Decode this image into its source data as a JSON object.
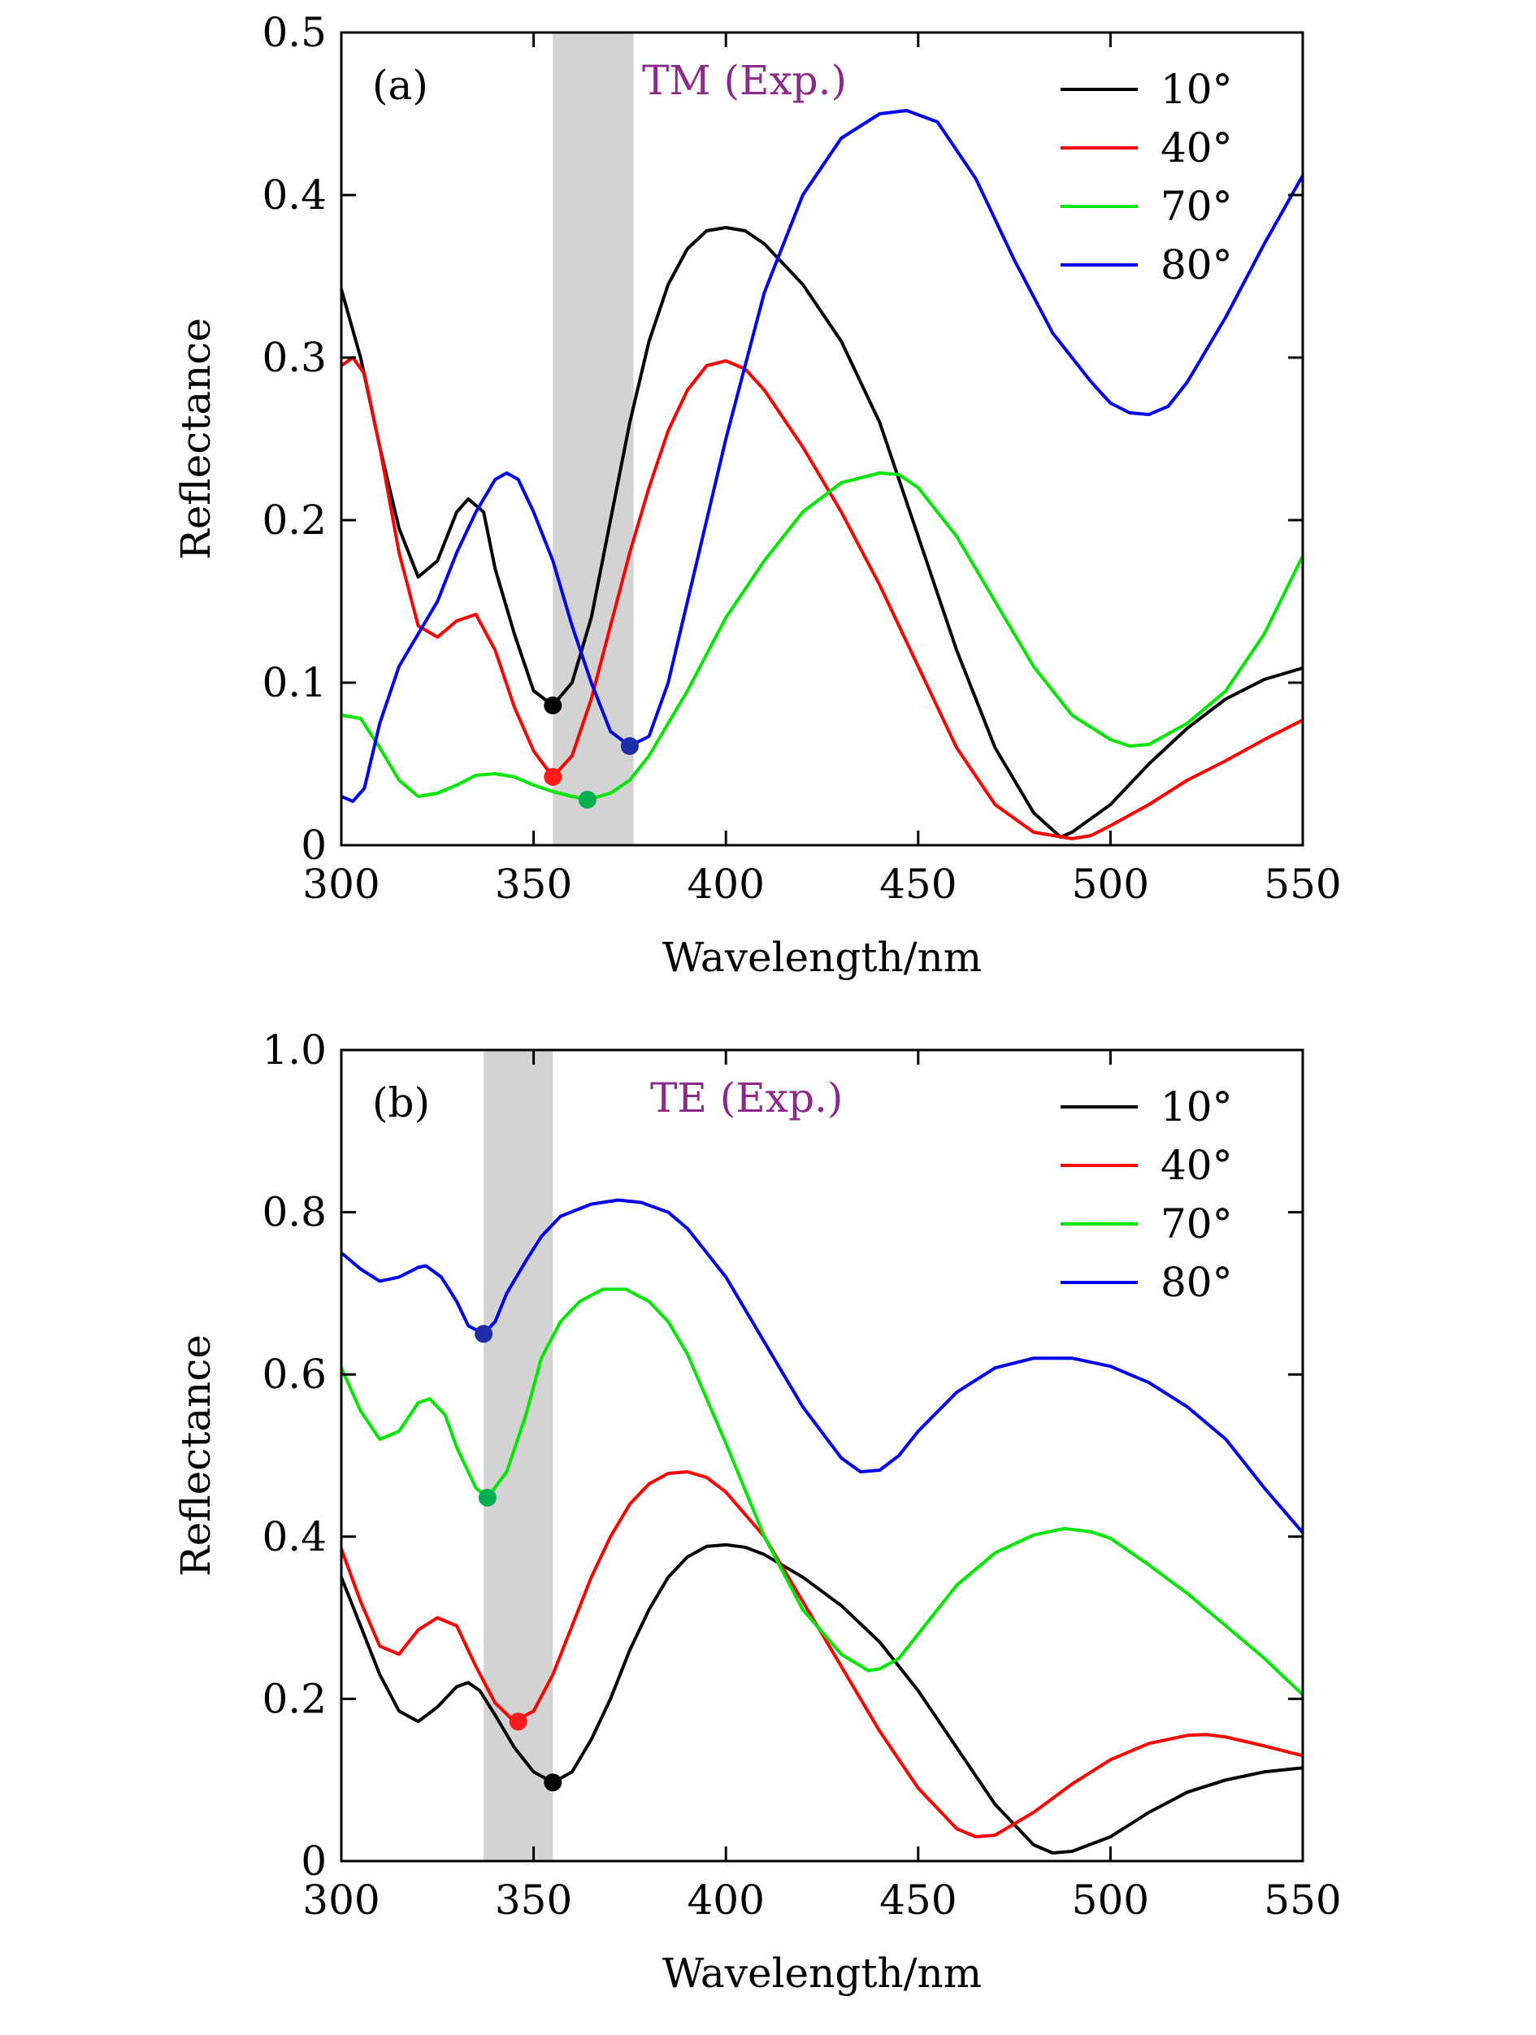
{
  "chart_data": [
    {
      "type": "line",
      "panel_label": "(a)",
      "annotation": "TM (Exp.)",
      "annotation_color": "#8b2a8b",
      "xlabel": "Wavelength/nm",
      "ylabel": "Reflectance",
      "xlim": [
        300,
        550
      ],
      "ylim": [
        0,
        0.5
      ],
      "xticks": [
        300,
        350,
        400,
        450,
        500,
        550
      ],
      "xtick_labels": [
        "300",
        "350",
        "400",
        "450",
        "500",
        "550"
      ],
      "yticks": [
        0,
        0.1,
        0.2,
        0.3,
        0.4,
        0.5
      ],
      "ytick_labels": [
        "0",
        "0.1",
        "0.2",
        "0.3",
        "0.4",
        "0.5"
      ],
      "shaded_band": [
        355,
        376
      ],
      "shaded_color": "#d3d3d3",
      "legend_position": "top-right",
      "series": [
        {
          "name": "10°",
          "color": "#000000",
          "x": [
            300,
            305,
            310,
            315,
            320,
            325,
            330,
            333,
            337,
            340,
            345,
            350,
            355,
            360,
            365,
            370,
            375,
            380,
            385,
            390,
            395,
            400,
            405,
            410,
            420,
            430,
            440,
            450,
            460,
            470,
            480,
            487,
            490,
            500,
            510,
            520,
            530,
            540,
            550
          ],
          "y": [
            0.342,
            0.3,
            0.245,
            0.195,
            0.165,
            0.175,
            0.205,
            0.213,
            0.205,
            0.17,
            0.13,
            0.095,
            0.086,
            0.1,
            0.14,
            0.2,
            0.26,
            0.31,
            0.345,
            0.367,
            0.378,
            0.38,
            0.378,
            0.37,
            0.345,
            0.31,
            0.26,
            0.19,
            0.12,
            0.06,
            0.02,
            0.005,
            0.008,
            0.025,
            0.05,
            0.072,
            0.09,
            0.102,
            0.109
          ],
          "min_marker": {
            "x": 355,
            "y": 0.086,
            "color": "#000000"
          }
        },
        {
          "name": "40°",
          "color": "#ff0000",
          "x": [
            300,
            303,
            306,
            310,
            315,
            320,
            325,
            330,
            335,
            340,
            345,
            350,
            355,
            360,
            365,
            370,
            375,
            380,
            385,
            390,
            395,
            400,
            405,
            410,
            420,
            430,
            440,
            450,
            460,
            470,
            480,
            490,
            495,
            500,
            510,
            520,
            530,
            540,
            550
          ],
          "y": [
            0.295,
            0.3,
            0.29,
            0.245,
            0.18,
            0.135,
            0.128,
            0.138,
            0.142,
            0.12,
            0.085,
            0.058,
            0.042,
            0.055,
            0.09,
            0.135,
            0.18,
            0.22,
            0.255,
            0.28,
            0.295,
            0.298,
            0.293,
            0.28,
            0.245,
            0.205,
            0.16,
            0.11,
            0.06,
            0.025,
            0.008,
            0.004,
            0.006,
            0.012,
            0.025,
            0.04,
            0.052,
            0.065,
            0.077
          ],
          "min_marker": {
            "x": 355,
            "y": 0.042,
            "color": "#ff1a1a"
          }
        },
        {
          "name": "70°",
          "color": "#00e600",
          "x": [
            300,
            305,
            310,
            315,
            320,
            325,
            330,
            335,
            340,
            345,
            350,
            355,
            360,
            364,
            370,
            375,
            380,
            390,
            400,
            410,
            420,
            430,
            440,
            445,
            450,
            460,
            470,
            480,
            490,
            500,
            505,
            510,
            520,
            530,
            540,
            550
          ],
          "y": [
            0.08,
            0.078,
            0.06,
            0.04,
            0.03,
            0.032,
            0.037,
            0.043,
            0.044,
            0.042,
            0.037,
            0.033,
            0.03,
            0.028,
            0.032,
            0.04,
            0.055,
            0.095,
            0.14,
            0.175,
            0.205,
            0.223,
            0.229,
            0.228,
            0.22,
            0.19,
            0.15,
            0.11,
            0.08,
            0.065,
            0.061,
            0.062,
            0.075,
            0.095,
            0.13,
            0.178
          ],
          "min_marker": {
            "x": 364,
            "y": 0.028,
            "color": "#00b050"
          }
        },
        {
          "name": "80°",
          "color": "#0000ee",
          "x": [
            300,
            303,
            306,
            310,
            315,
            320,
            325,
            330,
            335,
            340,
            343,
            346,
            350,
            355,
            360,
            365,
            370,
            375,
            380,
            385,
            390,
            400,
            410,
            420,
            430,
            440,
            447,
            455,
            465,
            475,
            485,
            495,
            500,
            505,
            510,
            515,
            520,
            530,
            540,
            550
          ],
          "y": [
            0.03,
            0.027,
            0.035,
            0.075,
            0.11,
            0.13,
            0.15,
            0.18,
            0.205,
            0.225,
            0.229,
            0.225,
            0.205,
            0.175,
            0.135,
            0.1,
            0.07,
            0.061,
            0.067,
            0.1,
            0.15,
            0.25,
            0.34,
            0.4,
            0.435,
            0.45,
            0.452,
            0.445,
            0.41,
            0.36,
            0.315,
            0.285,
            0.272,
            0.266,
            0.265,
            0.27,
            0.285,
            0.325,
            0.37,
            0.412
          ],
          "min_marker": {
            "x": 375,
            "y": 0.061,
            "color": "#1f2ea8"
          }
        }
      ]
    },
    {
      "type": "line",
      "panel_label": "(b)",
      "annotation": "TE (Exp.)",
      "annotation_color": "#8b2a8b",
      "xlabel": "Wavelength/nm",
      "ylabel": "Reflectance",
      "xlim": [
        300,
        550
      ],
      "ylim": [
        0,
        1.0
      ],
      "xticks": [
        300,
        350,
        400,
        450,
        500,
        550
      ],
      "xtick_labels": [
        "300",
        "350",
        "400",
        "450",
        "500",
        "550"
      ],
      "yticks": [
        0,
        0.2,
        0.4,
        0.6,
        0.8,
        1.0
      ],
      "ytick_labels": [
        "0",
        "0.2",
        "0.4",
        "0.6",
        "0.8",
        "1.0"
      ],
      "shaded_band": [
        337,
        355
      ],
      "shaded_color": "#d3d3d3",
      "legend_position": "top-right",
      "series": [
        {
          "name": "10°",
          "color": "#000000",
          "x": [
            300,
            305,
            310,
            315,
            320,
            325,
            330,
            333,
            336,
            340,
            345,
            350,
            355,
            360,
            365,
            370,
            375,
            380,
            385,
            390,
            395,
            400,
            405,
            410,
            420,
            430,
            440,
            450,
            460,
            470,
            480,
            485,
            490,
            500,
            510,
            520,
            530,
            540,
            550
          ],
          "y": [
            0.35,
            0.29,
            0.23,
            0.185,
            0.172,
            0.19,
            0.215,
            0.22,
            0.21,
            0.18,
            0.14,
            0.11,
            0.097,
            0.11,
            0.15,
            0.2,
            0.26,
            0.31,
            0.35,
            0.375,
            0.388,
            0.39,
            0.387,
            0.378,
            0.35,
            0.315,
            0.27,
            0.21,
            0.14,
            0.07,
            0.02,
            0.01,
            0.012,
            0.03,
            0.06,
            0.085,
            0.1,
            0.11,
            0.115
          ],
          "min_marker": {
            "x": 355,
            "y": 0.097,
            "color": "#000000"
          }
        },
        {
          "name": "40°",
          "color": "#ff0000",
          "x": [
            300,
            305,
            310,
            315,
            320,
            325,
            330,
            335,
            340,
            345,
            350,
            355,
            360,
            365,
            370,
            375,
            380,
            385,
            390,
            395,
            400,
            410,
            420,
            430,
            440,
            450,
            460,
            465,
            470,
            480,
            490,
            500,
            510,
            520,
            525,
            530,
            540,
            550
          ],
          "y": [
            0.385,
            0.32,
            0.265,
            0.255,
            0.285,
            0.3,
            0.29,
            0.24,
            0.195,
            0.172,
            0.185,
            0.23,
            0.29,
            0.35,
            0.4,
            0.44,
            0.465,
            0.478,
            0.48,
            0.473,
            0.455,
            0.4,
            0.32,
            0.24,
            0.16,
            0.09,
            0.04,
            0.03,
            0.032,
            0.06,
            0.095,
            0.125,
            0.145,
            0.155,
            0.156,
            0.153,
            0.142,
            0.13
          ],
          "min_marker": {
            "x": 346,
            "y": 0.172,
            "color": "#ff1a1a"
          }
        },
        {
          "name": "70°",
          "color": "#00e600",
          "x": [
            300,
            305,
            310,
            315,
            320,
            323,
            327,
            330,
            335,
            338,
            343,
            348,
            352,
            357,
            362,
            368,
            374,
            380,
            385,
            390,
            400,
            410,
            420,
            430,
            437,
            440,
            445,
            450,
            460,
            470,
            480,
            488,
            495,
            500,
            510,
            520,
            530,
            540,
            550
          ],
          "y": [
            0.608,
            0.555,
            0.52,
            0.53,
            0.565,
            0.57,
            0.55,
            0.51,
            0.46,
            0.448,
            0.48,
            0.55,
            0.62,
            0.665,
            0.69,
            0.705,
            0.705,
            0.69,
            0.665,
            0.625,
            0.515,
            0.4,
            0.31,
            0.255,
            0.235,
            0.237,
            0.25,
            0.28,
            0.34,
            0.38,
            0.402,
            0.41,
            0.406,
            0.398,
            0.365,
            0.33,
            0.29,
            0.25,
            0.205
          ],
          "min_marker": {
            "x": 338,
            "y": 0.448,
            "color": "#00b050"
          }
        },
        {
          "name": "80°",
          "color": "#0000ee",
          "x": [
            300,
            305,
            310,
            315,
            320,
            322,
            326,
            330,
            333,
            337,
            340,
            343,
            348,
            352,
            357,
            365,
            372,
            378,
            385,
            390,
            400,
            410,
            420,
            430,
            435,
            440,
            445,
            450,
            460,
            470,
            480,
            490,
            500,
            510,
            520,
            530,
            540,
            550
          ],
          "y": [
            0.75,
            0.73,
            0.715,
            0.72,
            0.732,
            0.734,
            0.72,
            0.69,
            0.66,
            0.65,
            0.665,
            0.7,
            0.74,
            0.77,
            0.795,
            0.81,
            0.815,
            0.812,
            0.8,
            0.78,
            0.72,
            0.64,
            0.56,
            0.497,
            0.48,
            0.482,
            0.5,
            0.53,
            0.578,
            0.608,
            0.62,
            0.62,
            0.61,
            0.59,
            0.56,
            0.52,
            0.46,
            0.405
          ],
          "min_marker": {
            "x": 337,
            "y": 0.65,
            "color": "#1f2ea8"
          }
        }
      ]
    }
  ]
}
